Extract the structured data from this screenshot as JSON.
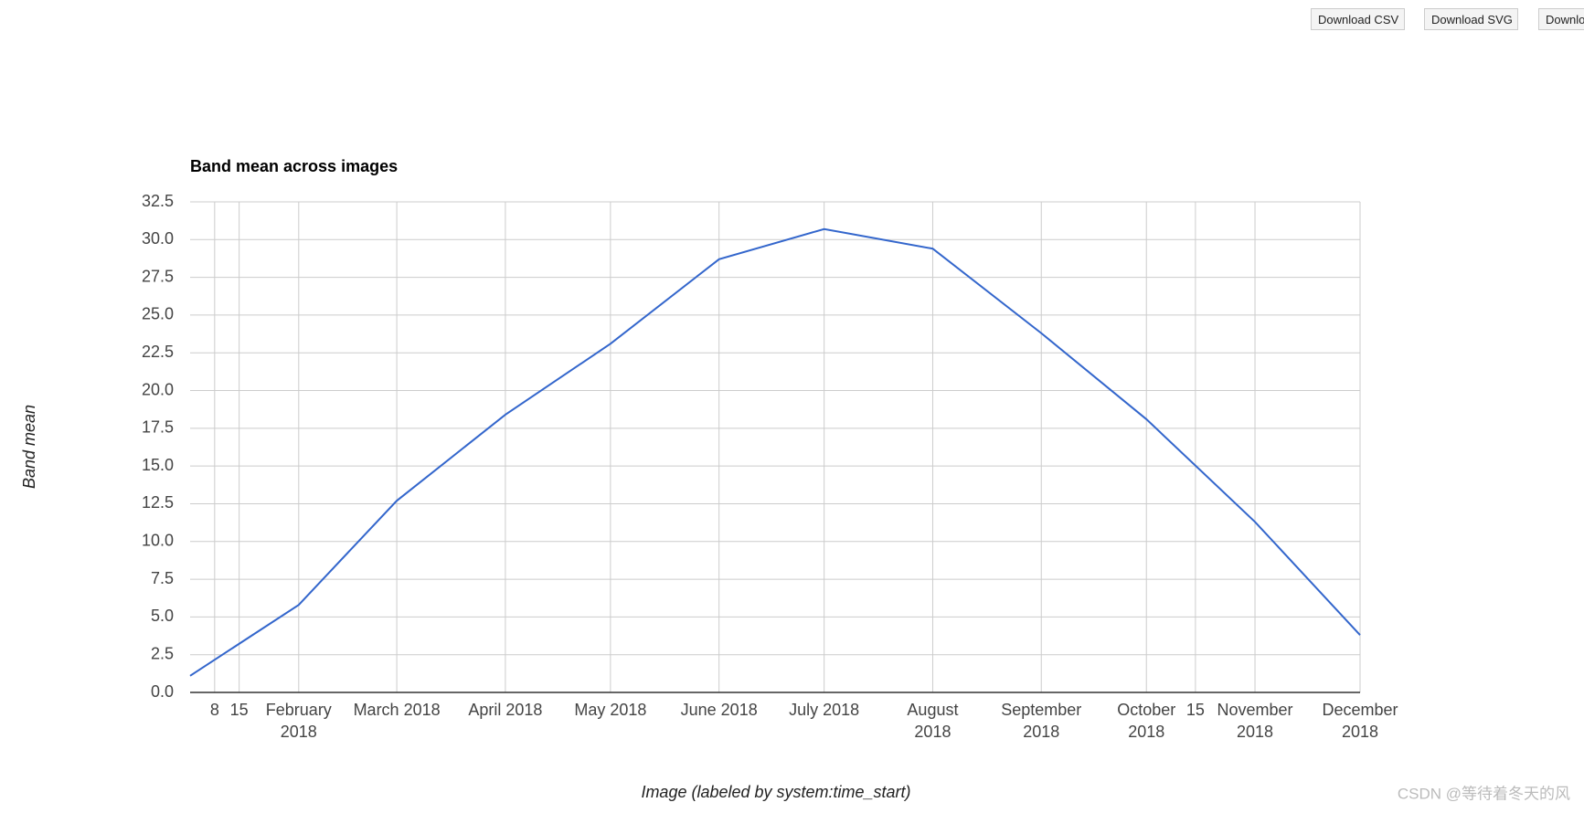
{
  "buttons": [
    "Download CSV",
    "Download SVG",
    "Download PNG"
  ],
  "chart_data": {
    "type": "line",
    "title": "Band mean across images",
    "ylabel": "Band mean",
    "xlabel": "Image (labeled by system:time_start)",
    "x": [
      "2018-01",
      "2018-02",
      "2018-03",
      "2018-04",
      "2018-05",
      "2018-06",
      "2018-07",
      "2018-08",
      "2018-09",
      "2018-10",
      "2018-11",
      "2018-12"
    ],
    "values": [
      1.1,
      5.8,
      12.7,
      18.4,
      23.1,
      28.7,
      30.7,
      29.4,
      23.8,
      18.1,
      11.3,
      3.8
    ],
    "color": "#3366cc",
    "xlim": [
      "2018-01",
      "2018-12"
    ],
    "xticks": [
      {
        "value": "2018-01-08",
        "label": "8"
      },
      {
        "value": "2018-01-15",
        "label": "15"
      },
      {
        "value": "2018-02",
        "label": "February 2018"
      },
      {
        "value": "2018-03",
        "label": "March 2018"
      },
      {
        "value": "2018-04",
        "label": "April 2018"
      },
      {
        "value": "2018-05",
        "label": "May 2018"
      },
      {
        "value": "2018-06",
        "label": "June 2018"
      },
      {
        "value": "2018-07",
        "label": "July 2018"
      },
      {
        "value": "2018-08",
        "label": "August 2018"
      },
      {
        "value": "2018-09",
        "label": "September 2018"
      },
      {
        "value": "2018-10",
        "label": "October 2018"
      },
      {
        "value": "2018-10-15",
        "label": "15"
      },
      {
        "value": "2018-11",
        "label": "November 2018"
      },
      {
        "value": "2018-12",
        "label": "December 2018"
      }
    ],
    "ylim": [
      0,
      32.5
    ],
    "yticks": [
      {
        "value": 0,
        "label": "0.0"
      },
      {
        "value": 2.5,
        "label": "2.5"
      },
      {
        "value": 5,
        "label": "5.0"
      },
      {
        "value": 7.5,
        "label": "7.5"
      },
      {
        "value": 10,
        "label": "10.0"
      },
      {
        "value": 12.5,
        "label": "12.5"
      },
      {
        "value": 15,
        "label": "15.0"
      },
      {
        "value": 17.5,
        "label": "17.5"
      },
      {
        "value": 20,
        "label": "20.0"
      },
      {
        "value": 22.5,
        "label": "22.5"
      },
      {
        "value": 25,
        "label": "25.0"
      },
      {
        "value": 27.5,
        "label": "27.5"
      },
      {
        "value": 30,
        "label": "30.0"
      },
      {
        "value": 32.5,
        "label": "32.5"
      }
    ],
    "grid": true
  },
  "watermark": "CSDN @等待着冬天的风"
}
